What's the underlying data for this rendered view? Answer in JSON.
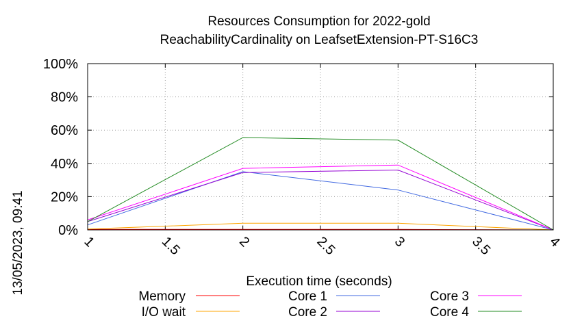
{
  "chart_data": {
    "type": "line",
    "title_line1": "Resources Consumption for 2022-gold",
    "title_line2": "ReachabilityCardinality on LeafsetExtension-PT-S16C3",
    "xlabel": "Execution time (seconds)",
    "ylabel": "",
    "xlim": [
      1,
      4
    ],
    "ylim": [
      0,
      100
    ],
    "x_ticks": [
      "1",
      "1.5",
      "2",
      "2.5",
      "3",
      "3.5",
      "4"
    ],
    "y_ticks": [
      "0%",
      "20%",
      "40%",
      "60%",
      "80%",
      "100%"
    ],
    "grid": true,
    "legend_position": "bottom",
    "x": [
      1,
      2,
      3,
      4
    ],
    "series": [
      {
        "name": "Memory",
        "color": "#ff0000",
        "values": [
          0.3,
          0.3,
          0.3,
          0
        ]
      },
      {
        "name": "I/O wait",
        "color": "#ffa500",
        "values": [
          0.5,
          4,
          4,
          0
        ]
      },
      {
        "name": "Core 1",
        "color": "#4169e1",
        "values": [
          3,
          35,
          24,
          0
        ]
      },
      {
        "name": "Core 2",
        "color": "#9400d3",
        "values": [
          5,
          34.5,
          36,
          0
        ]
      },
      {
        "name": "Core 3",
        "color": "#ff00ff",
        "values": [
          6,
          37,
          39,
          0
        ]
      },
      {
        "name": "Core 4",
        "color": "#228b22",
        "values": [
          5,
          55.5,
          54,
          0
        ]
      }
    ]
  },
  "timestamp": "13/05/2023, 09:41"
}
